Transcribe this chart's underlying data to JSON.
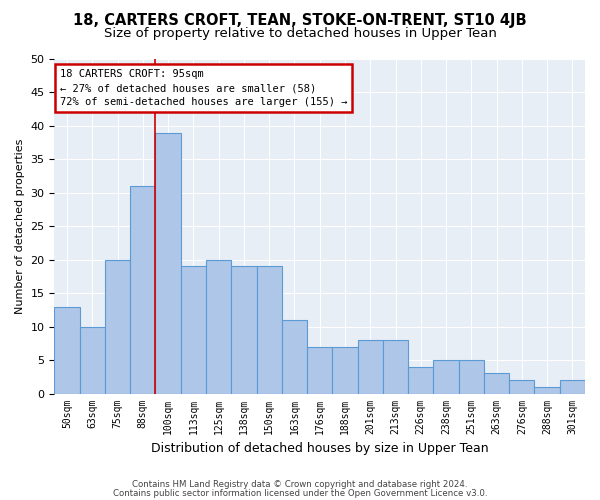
{
  "title": "18, CARTERS CROFT, TEAN, STOKE-ON-TRENT, ST10 4JB",
  "subtitle": "Size of property relative to detached houses in Upper Tean",
  "xlabel": "Distribution of detached houses by size in Upper Tean",
  "ylabel": "Number of detached properties",
  "tick_labels": [
    "50sqm",
    "63sqm",
    "75sqm",
    "88sqm",
    "100sqm",
    "113sqm",
    "125sqm",
    "138sqm",
    "150sqm",
    "163sqm",
    "176sqm",
    "188sqm",
    "201sqm",
    "213sqm",
    "226sqm",
    "238sqm",
    "251sqm",
    "263sqm",
    "276sqm",
    "288sqm",
    "301sqm"
  ],
  "bar_values": [
    13,
    10,
    20,
    31,
    39,
    19,
    20,
    19,
    19,
    11,
    7,
    7,
    8,
    8,
    4,
    5,
    5,
    3,
    2,
    1,
    2
  ],
  "bar_color": "#aec6e8",
  "bar_edge_color": "#5b9bd5",
  "vline_color": "#cc0000",
  "annotation_title": "18 CARTERS CROFT: 95sqm",
  "annotation_line1": "← 27% of detached houses are smaller (58)",
  "annotation_line2": "72% of semi-detached houses are larger (155) →",
  "annotation_box_color": "#cc0000",
  "annotation_box_fill": "#ffffff",
  "ylim": [
    0,
    50
  ],
  "yticks": [
    0,
    5,
    10,
    15,
    20,
    25,
    30,
    35,
    40,
    45,
    50
  ],
  "footer1": "Contains HM Land Registry data © Crown copyright and database right 2024.",
  "footer2": "Contains public sector information licensed under the Open Government Licence v3.0.",
  "bg_color": "#e8eef6",
  "title_fontsize": 10.5,
  "subtitle_fontsize": 9.5
}
